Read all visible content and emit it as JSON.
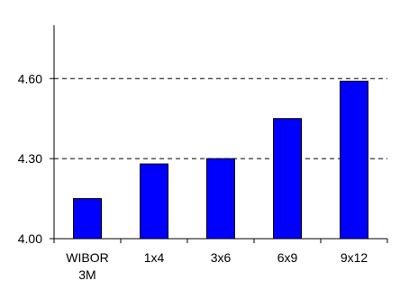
{
  "chart_data": {
    "type": "bar",
    "title": "",
    "xlabel": "",
    "ylabel": "",
    "categories": [
      "WIBOR 3M",
      "1x4",
      "3x6",
      "6x9",
      "9x12"
    ],
    "category_label_lines": [
      [
        "WIBOR",
        "3M"
      ],
      [
        "1x4"
      ],
      [
        "3x6"
      ],
      [
        "6x9"
      ],
      [
        "9x12"
      ]
    ],
    "values": [
      4.15,
      4.28,
      4.3,
      4.45,
      4.59
    ],
    "ylim": [
      4.0,
      4.8
    ],
    "yticks": [
      4.0,
      4.3,
      4.6
    ],
    "ytick_labels": [
      "4.00",
      "4.30",
      "4.60"
    ],
    "grid": "horizontal dashed at 4.30 and 4.60",
    "legend": "none",
    "colors": {
      "bar_fill": "#0000ff",
      "bar_stroke": "#000000",
      "axis": "#000000",
      "grid": "#000000"
    }
  }
}
